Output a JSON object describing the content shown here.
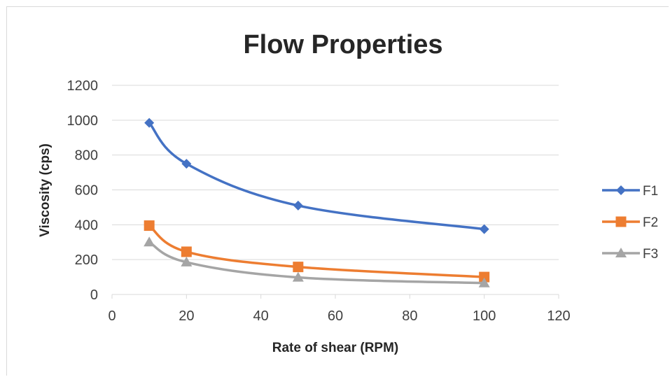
{
  "chart_data": {
    "type": "line",
    "title": "Flow Properties",
    "xlabel": "Rate of shear (RPM)",
    "ylabel": "Viscosity (cps)",
    "xlim": [
      0,
      120
    ],
    "ylim": [
      0,
      1200
    ],
    "x_ticks": [
      "0",
      "20",
      "40",
      "60",
      "80",
      "100",
      "120"
    ],
    "y_ticks": [
      "0",
      "200",
      "400",
      "600",
      "800",
      "1000",
      "1200"
    ],
    "x": [
      10,
      20,
      50,
      100
    ],
    "grid": "horizontal",
    "legend_position": "right",
    "series": [
      {
        "name": "F1",
        "values": [
          985,
          750,
          510,
          375
        ],
        "color": "#4472c4",
        "marker": "diamond"
      },
      {
        "name": "F2",
        "values": [
          395,
          245,
          158,
          100
        ],
        "color": "#ed7d31",
        "marker": "square"
      },
      {
        "name": "F3",
        "values": [
          300,
          185,
          98,
          65
        ],
        "color": "#a5a5a5",
        "marker": "triangle"
      }
    ]
  }
}
